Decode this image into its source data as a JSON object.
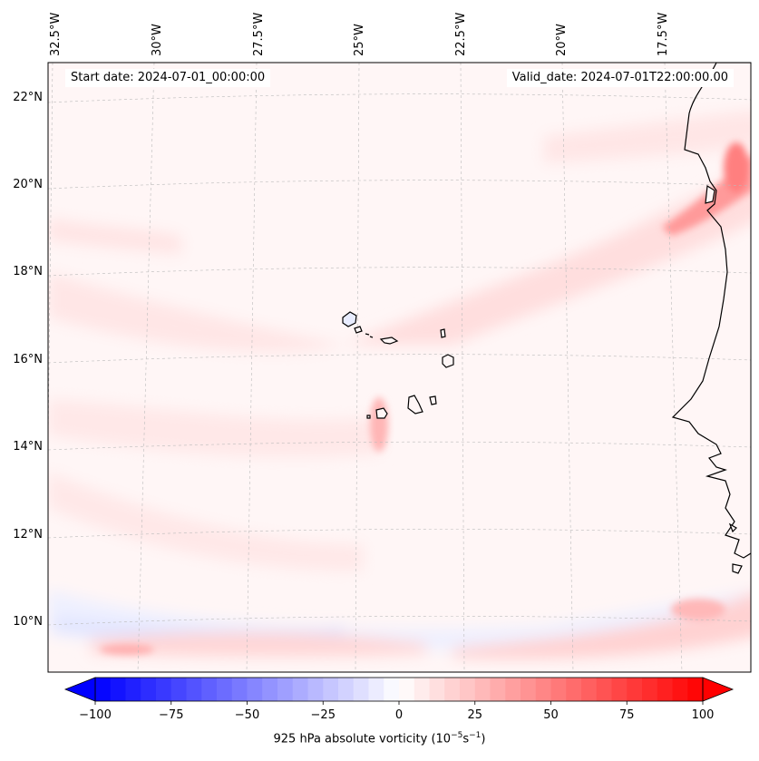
{
  "header": {
    "start_date": "Start date: 2024-07-01_00:00:00",
    "valid_date": "Valid_date: 2024-07-01T22:00:00.00"
  },
  "map": {
    "lon_labels": [
      "32.5°W",
      "30°W",
      "27.5°W",
      "25°W",
      "22.5°W",
      "20°W",
      "17.5°W"
    ],
    "lat_labels": [
      "22°N",
      "20°N",
      "18°N",
      "16°N",
      "14°N",
      "12°N",
      "10°N"
    ],
    "gridlines": true,
    "coastline_color": "#000000",
    "features": [
      "Cabo Verde islands",
      "West African coast"
    ]
  },
  "colorbar": {
    "title": "925 hPa absolute vorticity (10",
    "title_exp1": "−5",
    "title_mid": "s",
    "title_exp2": "−1",
    "title_end": ")",
    "tick_labels": [
      "−100",
      "−75",
      "−50",
      "−25",
      "0",
      "25",
      "50",
      "75",
      "100"
    ],
    "vmin": -100,
    "vmax": 100,
    "colormap": "bwr",
    "extend": "both"
  }
}
